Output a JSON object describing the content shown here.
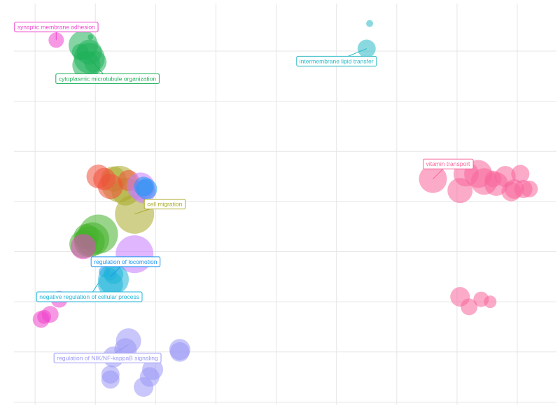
{
  "chart_data": {
    "type": "scatter",
    "title": "",
    "xlabel": "",
    "ylabel": "",
    "xlim": [
      -0.35,
      8.65
    ],
    "ylim": [
      -0.05,
      7.95
    ],
    "grid": true,
    "clusters": [
      {
        "name": "synaptic membrane adhesion",
        "color": "#EE44CC",
        "label": "synaptic membrane adhesion",
        "label_x": 0.35,
        "label_y": 7.48,
        "anchor_x": 0.35,
        "anchor_y": 7.22,
        "points": [
          [
            0.0,
            7.48,
            4
          ],
          [
            0.35,
            7.22,
            11
          ]
        ]
      },
      {
        "name": "cytoplasmic microtubule organization",
        "color": "#1FB05A",
        "label": "cytoplasmic microtubule organization",
        "label_x": 1.2,
        "label_y": 6.45,
        "anchor_x": 0.9,
        "anchor_y": 6.86,
        "points": [
          [
            0.8,
            7.12,
            21
          ],
          [
            0.9,
            6.98,
            18
          ],
          [
            0.75,
            6.98,
            12
          ],
          [
            0.9,
            6.86,
            22
          ],
          [
            0.85,
            6.72,
            20
          ],
          [
            1.0,
            6.78,
            16
          ],
          [
            0.92,
            7.28,
            4
          ]
        ]
      },
      {
        "name": "intermembrane lipid transfer",
        "color": "#2CB9C6",
        "label": "intermembrane lipid transfer",
        "label_x": 5.0,
        "label_y": 6.8,
        "anchor_x": 5.5,
        "anchor_y": 7.05,
        "points": [
          [
            5.55,
            7.55,
            5
          ],
          [
            5.5,
            7.05,
            13
          ]
        ]
      },
      {
        "name": "vitamin transport",
        "color": "#F8669A",
        "label": "vitamin transport",
        "label_x": 6.85,
        "label_y": 4.75,
        "anchor_x": 6.6,
        "anchor_y": 4.45,
        "points": [
          [
            6.6,
            4.45,
            20
          ],
          [
            7.05,
            4.22,
            18
          ],
          [
            7.15,
            4.55,
            18
          ],
          [
            7.35,
            4.55,
            20
          ],
          [
            7.45,
            4.4,
            19
          ],
          [
            7.65,
            4.35,
            17
          ],
          [
            7.8,
            4.5,
            15
          ],
          [
            7.95,
            4.25,
            14
          ],
          [
            8.05,
            4.55,
            13
          ],
          [
            8.1,
            4.25,
            13
          ],
          [
            8.2,
            4.25,
            12
          ],
          [
            7.9,
            4.2,
            14
          ],
          [
            7.6,
            4.45,
            12
          ]
        ]
      },
      {
        "name": "vitamin transport low",
        "color": "#F8669A",
        "label": "",
        "points": [
          [
            7.05,
            2.1,
            14
          ],
          [
            7.2,
            1.9,
            12
          ],
          [
            7.4,
            2.05,
            11
          ],
          [
            7.55,
            2.0,
            9
          ]
        ]
      },
      {
        "name": "cell migration",
        "color": "#AAAA2A",
        "label": "cell migration",
        "label_x": 2.15,
        "label_y": 3.95,
        "anchor_x": 1.65,
        "anchor_y": 3.75,
        "points": [
          [
            1.4,
            4.35,
            26
          ],
          [
            1.65,
            3.75,
            28
          ],
          [
            1.5,
            4.2,
            20
          ],
          [
            1.3,
            4.45,
            18
          ]
        ]
      },
      {
        "name": "cell migration red",
        "color": "#F0503A",
        "label": "",
        "points": [
          [
            1.05,
            4.5,
            17
          ],
          [
            1.15,
            4.45,
            16
          ],
          [
            1.25,
            4.3,
            18
          ],
          [
            1.55,
            4.42,
            15
          ]
        ]
      },
      {
        "name": "cell migration purple",
        "color": "#C77CFF",
        "label": "",
        "points": [
          [
            1.65,
            2.95,
            27
          ],
          [
            1.75,
            4.3,
            20
          ],
          [
            1.8,
            4.2,
            17
          ]
        ]
      },
      {
        "name": "regulation of locomotion",
        "color": "#2196F3",
        "label": "regulation of locomotion",
        "label_x": 1.5,
        "label_y": 2.8,
        "anchor_x": 1.25,
        "anchor_y": 2.5,
        "points": [
          [
            1.25,
            2.55,
            9
          ],
          [
            1.15,
            2.6,
            8
          ],
          [
            1.8,
            4.3,
            14
          ],
          [
            1.85,
            4.25,
            15
          ]
        ]
      },
      {
        "name": "negative regulation of cellular process",
        "color": "#1FB5D9",
        "label": "negative regulation of cellular process",
        "label_x": 0.9,
        "label_y": 2.1,
        "anchor_x": 1.05,
        "anchor_y": 2.37,
        "points": [
          [
            1.3,
            2.45,
            22
          ],
          [
            1.25,
            2.35,
            18
          ],
          [
            1.3,
            2.55,
            14
          ]
        ]
      },
      {
        "name": "green middle",
        "color": "#43B02A",
        "label": "",
        "points": [
          [
            1.05,
            3.35,
            28
          ],
          [
            0.9,
            3.2,
            22
          ],
          [
            0.8,
            3.15,
            20
          ],
          [
            0.95,
            3.25,
            24
          ],
          [
            0.85,
            3.3,
            18
          ]
        ]
      },
      {
        "name": "pink middle",
        "color": "#EE44CC",
        "label": "",
        "points": [
          [
            0.8,
            3.1,
            18
          ],
          [
            0.4,
            2.05,
            12
          ],
          [
            0.25,
            1.75,
            12
          ],
          [
            0.1,
            1.65,
            12
          ],
          [
            0.15,
            1.7,
            10
          ]
        ]
      },
      {
        "name": "regulation of NIK/NF-kappaB signaling",
        "color": "#9A98F5",
        "label": "regulation of NIK/NF-kappaB signaling",
        "label_x": 1.2,
        "label_y": 0.88,
        "anchor_x": 1.55,
        "anchor_y": 1.15,
        "points": [
          [
            1.55,
            1.22,
            18
          ],
          [
            1.5,
            1.05,
            16
          ],
          [
            1.3,
            0.9,
            15
          ],
          [
            1.25,
            0.55,
            13
          ],
          [
            1.25,
            0.45,
            13
          ],
          [
            1.95,
            0.65,
            15
          ],
          [
            1.9,
            0.5,
            14
          ],
          [
            1.8,
            0.3,
            14
          ],
          [
            2.4,
            1.05,
            15
          ],
          [
            2.4,
            1.0,
            14
          ]
        ]
      }
    ]
  }
}
